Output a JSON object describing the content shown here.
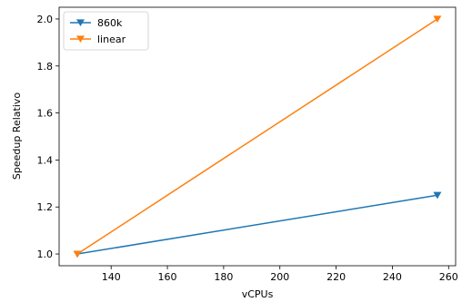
{
  "chart_data": {
    "type": "line",
    "xlabel": "vCPUs",
    "ylabel": "Speedup Relativo",
    "xlim": [
      121.5,
      262.5
    ],
    "ylim": [
      0.95,
      2.05
    ],
    "xticks": [
      140,
      160,
      180,
      200,
      220,
      240,
      260
    ],
    "yticks": [
      1.0,
      1.2,
      1.4,
      1.6,
      1.8,
      2.0
    ],
    "xtick_labels": [
      "140",
      "160",
      "180",
      "200",
      "220",
      "240",
      "260"
    ],
    "ytick_labels": [
      "1.0",
      "1.2",
      "1.4",
      "1.6",
      "1.8",
      "2.0"
    ],
    "grid": false,
    "legend_position": "upper-left",
    "series": [
      {
        "name": "860k",
        "color": "#1f77b4",
        "marker": "triangle-down",
        "x": [
          128,
          256
        ],
        "y": [
          1.0,
          1.25
        ]
      },
      {
        "name": "linear",
        "color": "#ff7f0e",
        "marker": "triangle-down",
        "x": [
          128,
          256
        ],
        "y": [
          1.0,
          2.0
        ]
      }
    ]
  }
}
